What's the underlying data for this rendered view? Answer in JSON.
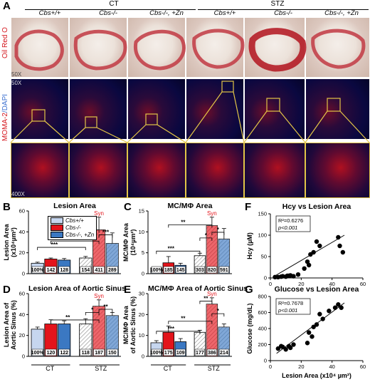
{
  "panel_A": {
    "letter": "A",
    "group_headers": [
      "CT",
      "STZ"
    ],
    "columns": [
      "Cbs+/+",
      "Cbs-/-",
      "Cbs-/-, +Zn",
      "Cbs+/+",
      "Cbs-/-",
      "Cbs-/-, +Zn"
    ],
    "row_labels": [
      "Oil Red O",
      "MOMA-2+DAPI"
    ],
    "row_label_parts": {
      "moma": "MOMA-2",
      "dapi": "/DAPI"
    },
    "magnifications": [
      "50X",
      "50X",
      "400X"
    ]
  },
  "legend": {
    "items": [
      "Cbs+/+",
      "Cbs-/-",
      "Cbs-/-, +Zn"
    ]
  },
  "syn_label": "Syn",
  "sig": {
    "two": "**",
    "three": "***",
    "one": "*"
  },
  "xgroups": [
    "CT",
    "STZ"
  ],
  "bar_panels": [
    {
      "letter": "B",
      "title": "Lesion Area",
      "ylabel": "Lesion Area",
      "ylabel2": "(x10⁴µm²)",
      "ticks": [
        "0",
        "20",
        "40",
        "60"
      ],
      "ymax": 60,
      "chart_data": {
        "type": "bar",
        "categories": [
          "CT Cbs+/+",
          "CT Cbs-/-",
          "CT Cbs-/-, +Zn",
          "STZ Cbs+/+",
          "STZ Cbs-/-",
          "STZ Cbs-/-, +Zn"
        ],
        "values": [
          10,
          14,
          13,
          15,
          42,
          29
        ],
        "pct_labels": [
          "100%",
          "142",
          "128",
          "154",
          "411",
          "289"
        ]
      }
    },
    {
      "letter": "C",
      "title": "MC/MΦ Area",
      "ylabel": "MC/MΦ Area",
      "ylabel2": "(10⁴µm²)",
      "ticks": [
        "0",
        "5",
        "10",
        "15"
      ],
      "ymax": 15,
      "chart_data": {
        "type": "bar",
        "categories": [
          "CT Cbs+/+",
          "CT Cbs-/-",
          "CT Cbs-/-, +Zn",
          "STZ Cbs+/+",
          "STZ Cbs-/-",
          "STZ Cbs-/-, +Zn"
        ],
        "values": [
          1.4,
          2.6,
          2.0,
          4.3,
          11.5,
          8.3
        ],
        "pct_labels": [
          "100%",
          "185",
          "145",
          "303",
          "820",
          "591"
        ]
      }
    },
    {
      "letter": "D",
      "title": "Lesion Area of Aortic Sinus",
      "ylabel": "Lesion Area of",
      "ylabel2": "Aortic Sinus (%)",
      "ticks": [
        "0",
        "20",
        "40",
        "60"
      ],
      "ymax": 60,
      "chart_data": {
        "type": "bar",
        "categories": [
          "CT Cbs+/+",
          "CT Cbs-/-",
          "CT Cbs-/-, +Zn",
          "STZ Cbs+/+",
          "STZ Cbs-/-",
          "STZ Cbs-/-, +Zn"
        ],
        "values": [
          26,
          31,
          31,
          31,
          48,
          39
        ],
        "pct_labels": [
          "100%",
          "120",
          "122",
          "118",
          "187",
          "150"
        ]
      }
    },
    {
      "letter": "E",
      "title": "MC/MΦ Area of Aortic Sinus",
      "ylabel": "MC/MΦ Area",
      "ylabel2": "of Aortic Sinus (%)",
      "ticks": [
        "0",
        "10",
        "20",
        "30"
      ],
      "ymax": 30,
      "chart_data": {
        "type": "bar",
        "categories": [
          "CT Cbs+/+",
          "CT Cbs-/-",
          "CT Cbs-/-, +Zn",
          "STZ Cbs+/+",
          "STZ Cbs-/-",
          "STZ Cbs-/-, +Zn"
        ],
        "values": [
          6.5,
          11.5,
          7,
          11.5,
          25,
          14
        ],
        "pct_labels": [
          "100%",
          "175",
          "109",
          "177",
          "386",
          "214"
        ]
      }
    }
  ],
  "scatter_panels": [
    {
      "letter": "F",
      "title": "Hcy vs Lesion Area",
      "ylabel": "Hcy (µM)",
      "r2": "R²=0.6276",
      "p": "p<0.001",
      "xticks": [
        "0",
        "20",
        "40",
        "60"
      ],
      "yticks": [
        "0",
        "50",
        "100",
        "150"
      ],
      "xmax": 60,
      "ymax": 150,
      "chart_data": {
        "type": "scatter",
        "x": [
          3,
          5,
          7,
          8,
          10,
          11,
          12,
          13,
          15,
          18,
          22,
          24,
          25,
          26,
          28,
          30,
          32,
          44,
          45,
          47
        ],
        "y": [
          2,
          2,
          3,
          4,
          3,
          5,
          5,
          6,
          4,
          8,
          22,
          38,
          30,
          55,
          60,
          85,
          75,
          95,
          75,
          60
        ],
        "fit": [
          [
            3,
            5
          ],
          [
            48,
            100
          ]
        ]
      }
    },
    {
      "letter": "G",
      "title": "Glucose vs Lesion Area",
      "ylabel": "Glucose (mg/dL)",
      "r2": "R²=0.7678",
      "p": "p<0.001",
      "xticks": [
        "0",
        "20",
        "40",
        "60"
      ],
      "yticks": [
        "0",
        "200",
        "400",
        "600",
        "800"
      ],
      "xmax": 60,
      "ymax": 800,
      "xlabel": "Lesion Area (x10⁴ µm²)",
      "chart_data": {
        "type": "scatter",
        "x": [
          5,
          7,
          8,
          10,
          12,
          13,
          15,
          24,
          25,
          27,
          28,
          30,
          32,
          34,
          38,
          42,
          44,
          46
        ],
        "y": [
          150,
          180,
          170,
          140,
          180,
          160,
          200,
          220,
          350,
          300,
          420,
          450,
          580,
          520,
          620,
          660,
          700,
          660
        ],
        "fit": [
          [
            4,
            90
          ],
          [
            48,
            720
          ]
        ]
      }
    }
  ],
  "colors": {
    "wt": "#c6d6ef",
    "ko": "#e3141b",
    "zn": "#3b78c2",
    "syn": "#e3141b",
    "frame": "#e2c547"
  }
}
